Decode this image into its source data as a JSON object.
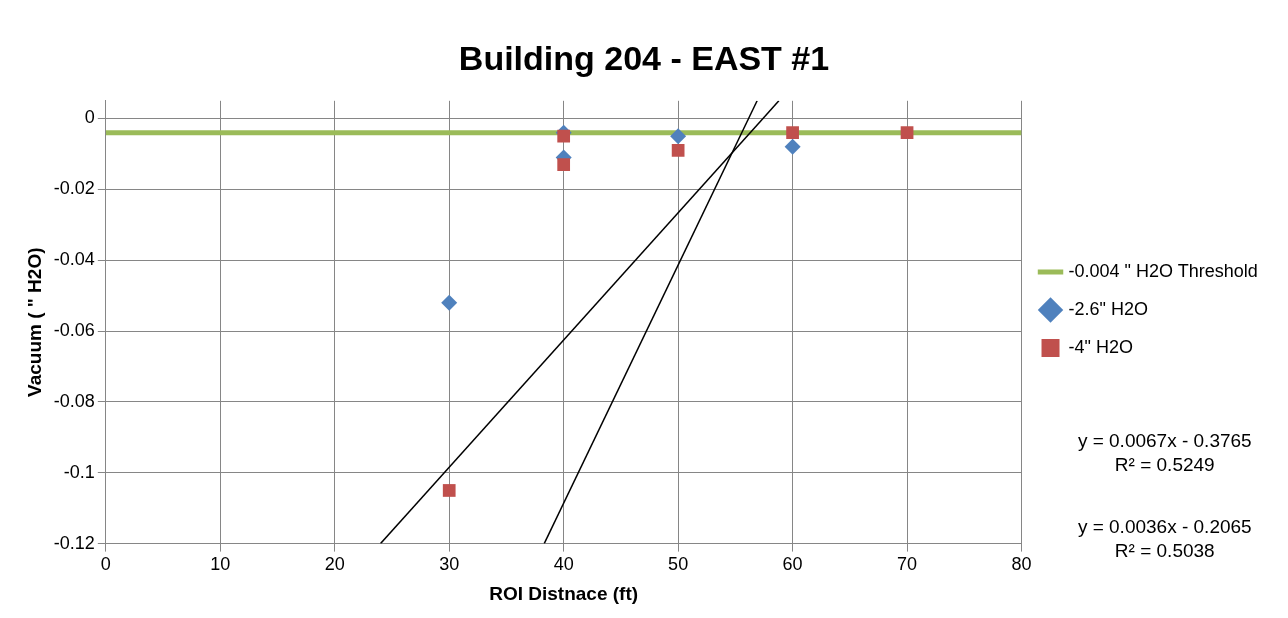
{
  "chart_data": {
    "type": "scatter",
    "title": "Building 204 - EAST #1",
    "xlabel": "ROI Distnace (ft)",
    "ylabel": "Vacuum ( \" H2O)",
    "xlim": [
      0,
      80
    ],
    "xticks": [
      0,
      10,
      20,
      30,
      40,
      50,
      60,
      70,
      80
    ],
    "ylim": [
      -0.12,
      0.005
    ],
    "yticks": [
      -0.12,
      -0.1,
      -0.08,
      -0.06,
      -0.04,
      -0.02,
      0
    ],
    "grid": true,
    "legend": "right",
    "ref_lines": [
      {
        "axis": "y",
        "value": -0.004,
        "label": "-0.004 \" H2O Threshold",
        "color": "#9bbb59"
      }
    ],
    "series": [
      {
        "name": "-2.6\" H2O",
        "color": "#4f81bd",
        "marker": "diamond",
        "x": [
          30,
          40,
          40,
          50,
          60
        ],
        "values": [
          -0.052,
          -0.004,
          -0.011,
          -0.005,
          -0.008
        ]
      },
      {
        "name": "-4\" H2O",
        "color": "#c0504d",
        "marker": "square",
        "x": [
          30,
          40,
          40,
          50,
          60,
          70
        ],
        "values": [
          -0.105,
          -0.005,
          -0.013,
          -0.009,
          -0.004,
          -0.004
        ]
      },
      {
        "type": "line",
        "color": "#000000",
        "marker": "none",
        "x": [
          38.3,
          56.9
        ],
        "values": [
          -0.12,
          0.005
        ]
      },
      {
        "type": "line",
        "color": "#000000",
        "marker": "none",
        "x": [
          24,
          58.8
        ],
        "values": [
          -0.12,
          0.005
        ]
      }
    ],
    "annotations": [
      "y = 0.0067x - 0.3765\nR² = 0.5249",
      "y = 0.0036x - 0.2065\nR² = 0.5038"
    ]
  }
}
